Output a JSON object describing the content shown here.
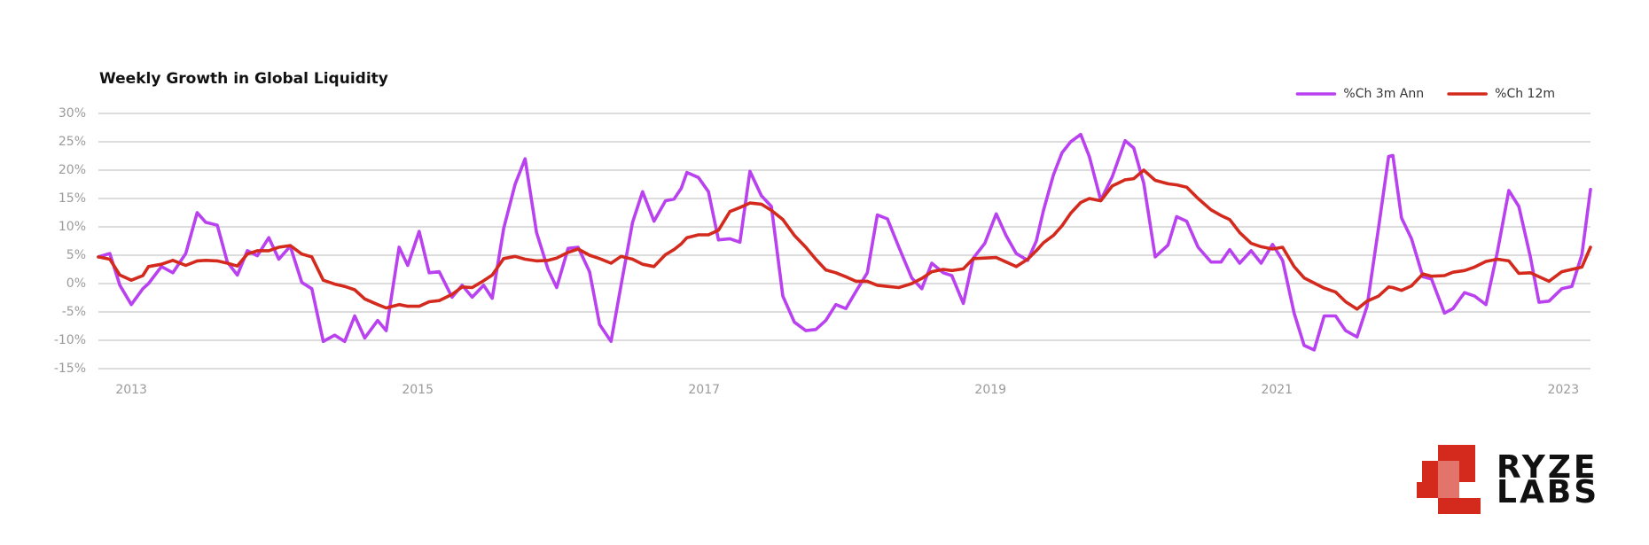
{
  "chart_data": {
    "type": "line",
    "title": "Weekly Growth in Global Liquidity",
    "xlim": [
      2012.77,
      2023.19
    ],
    "xticks": [
      2013,
      2015,
      2017,
      2019,
      2021,
      2023
    ],
    "ylim": [
      -15,
      30
    ],
    "yticks": [
      {
        "value": -15,
        "label": "-15%"
      },
      {
        "value": -10,
        "label": "-10%"
      },
      {
        "value": -5,
        "label": "-5%"
      },
      {
        "value": 0,
        "label": "0%"
      },
      {
        "value": 5,
        "label": "5%"
      },
      {
        "value": 10,
        "label": "10%"
      },
      {
        "value": 15,
        "label": "15%"
      },
      {
        "value": 20,
        "label": "20%"
      },
      {
        "value": 25,
        "label": "25%"
      },
      {
        "value": 30,
        "label": "30%"
      }
    ],
    "grid": true,
    "legend": "upper right",
    "x": [
      2012.77,
      2012.85,
      2012.92,
      2013.0,
      2013.08,
      2013.12,
      2013.21,
      2013.29,
      2013.38,
      2013.46,
      2013.52,
      2013.6,
      2013.67,
      2013.74,
      2013.81,
      2013.88,
      2013.96,
      2014.03,
      2014.11,
      2014.19,
      2014.26,
      2014.34,
      2014.42,
      2014.49,
      2014.56,
      2014.63,
      2014.72,
      2014.78,
      2014.87,
      2014.93,
      2015.01,
      2015.08,
      2015.15,
      2015.24,
      2015.31,
      2015.38,
      2015.46,
      2015.52,
      2015.6,
      2015.68,
      2015.75,
      2015.83,
      2015.91,
      2015.97,
      2016.05,
      2016.12,
      2016.2,
      2016.27,
      2016.35,
      2016.42,
      2016.5,
      2016.57,
      2016.65,
      2016.73,
      2016.79,
      2016.84,
      2016.88,
      2016.96,
      2017.03,
      2017.1,
      2017.18,
      2017.25,
      2017.32,
      2017.4,
      2017.47,
      2017.55,
      2017.63,
      2017.71,
      2017.78,
      2017.85,
      2017.92,
      2017.99,
      2018.06,
      2018.14,
      2018.21,
      2018.28,
      2018.36,
      2018.45,
      2018.52,
      2018.59,
      2018.67,
      2018.73,
      2018.81,
      2018.88,
      2018.96,
      2019.04,
      2019.11,
      2019.18,
      2019.26,
      2019.32,
      2019.37,
      2019.44,
      2019.5,
      2019.56,
      2019.63,
      2019.69,
      2019.77,
      2019.85,
      2019.94,
      2020.0,
      2020.07,
      2020.15,
      2020.24,
      2020.3,
      2020.37,
      2020.45,
      2020.54,
      2020.61,
      2020.67,
      2020.74,
      2020.82,
      2020.89,
      2020.97,
      2021.04,
      2021.12,
      2021.19,
      2021.26,
      2021.33,
      2021.41,
      2021.48,
      2021.56,
      2021.63,
      2021.71,
      2021.78,
      2021.81,
      2021.87,
      2021.94,
      2022.02,
      2022.08,
      2022.17,
      2022.23,
      2022.31,
      2022.38,
      2022.46,
      2022.54,
      2022.62,
      2022.69,
      2022.77,
      2022.83,
      2022.9,
      2022.99,
      2023.06,
      2023.13,
      2023.19
    ],
    "series": [
      {
        "name": "%Ch 3m Ann",
        "color": "#b941f0",
        "values": [
          4.7,
          5.3,
          -0.3,
          -3.7,
          -0.9,
          0,
          3,
          1.9,
          5.3,
          12.5,
          10.8,
          10.3,
          3.8,
          1.5,
          5.8,
          4.9,
          8.1,
          4.3,
          6.6,
          0.2,
          -0.9,
          -10.2,
          -9.1,
          -10.2,
          -5.7,
          -9.6,
          -6.5,
          -8.3,
          6.4,
          3.2,
          9.2,
          1.9,
          2.1,
          -2.4,
          -0.3,
          -2.4,
          -0.3,
          -2.6,
          9.7,
          17.5,
          22,
          9,
          2.5,
          -0.7,
          6.2,
          6.4,
          2.1,
          -7.2,
          -10.2,
          -0.3,
          10.8,
          16.2,
          11,
          14.6,
          14.9,
          16.8,
          19.6,
          18.7,
          16.2,
          7.7,
          7.9,
          7.3,
          19.8,
          15.5,
          13.6,
          -2.2,
          -6.8,
          -8.3,
          -8.1,
          -6.5,
          -3.7,
          -4.4,
          -1.4,
          1.9,
          12.1,
          11.4,
          6.4,
          1,
          -0.9,
          3.6,
          1.9,
          1.4,
          -3.5,
          4.5,
          7.1,
          12.3,
          8.4,
          5.3,
          4.1,
          7.5,
          12.9,
          19.2,
          23.1,
          25,
          26.3,
          22.4,
          14.7,
          18.8,
          25.2,
          23.9,
          17.7,
          4.7,
          6.8,
          11.8,
          11,
          6.4,
          3.8,
          3.8,
          6,
          3.6,
          5.8,
          3.6,
          6.9,
          4.1,
          -5.2,
          -10.9,
          -11.7,
          -5.7,
          -5.7,
          -8.3,
          -9.4,
          -4,
          9.9,
          22.4,
          22.6,
          11.6,
          7.9,
          1.2,
          0.8,
          -5.2,
          -4.4,
          -1.6,
          -2.2,
          -3.7,
          5.6,
          16.4,
          13.6,
          4.7,
          -3.3,
          -3.1,
          -0.9,
          -0.5,
          5.1,
          16.6
        ]
      },
      {
        "name": "%Ch 12m",
        "color": "#d42a1e",
        "values": [
          4.7,
          4.3,
          1.5,
          0.6,
          1.4,
          3.0,
          3.4,
          4.1,
          3.2,
          4,
          4.1,
          4,
          3.6,
          3.1,
          5.2,
          5.8,
          5.8,
          6.4,
          6.7,
          5.2,
          4.7,
          0.6,
          -0.1,
          -0.5,
          -1.1,
          -2.7,
          -3.7,
          -4.3,
          -3.7,
          -4,
          -4,
          -3.2,
          -3,
          -1.9,
          -0.6,
          -0.7,
          0.5,
          1.5,
          4.4,
          4.8,
          4.3,
          4,
          4.1,
          4.5,
          5.5,
          6.1,
          5,
          4.4,
          3.6,
          4.8,
          4.3,
          3.4,
          3,
          5.1,
          6,
          7,
          8.1,
          8.6,
          8.6,
          9.4,
          12.7,
          13.4,
          14.2,
          14,
          12.9,
          11.3,
          8.5,
          6.4,
          4.3,
          2.4,
          1.9,
          1.2,
          0.4,
          0.4,
          -0.3,
          -0.5,
          -0.7,
          0,
          0.9,
          2.1,
          2.5,
          2.3,
          2.6,
          4.4,
          4.5,
          4.6,
          3.8,
          3,
          4.3,
          5.8,
          7.2,
          8.5,
          10.2,
          12.4,
          14.3,
          15,
          14.6,
          17.2,
          18.3,
          18.5,
          20,
          18.2,
          17.6,
          17.4,
          17,
          15,
          13,
          12,
          11.3,
          9,
          7.1,
          6.5,
          6.1,
          6.4,
          3,
          1,
          0.1,
          -0.8,
          -1.5,
          -3.2,
          -4.5,
          -3.1,
          -2.2,
          -0.6,
          -0.7,
          -1.2,
          -0.4,
          1.7,
          1.3,
          1.4,
          2,
          2.3,
          2.9,
          3.9,
          4.3,
          4,
          1.8,
          1.9,
          1.2,
          0.4,
          2.1,
          2.5,
          2.9,
          6.4
        ]
      }
    ]
  },
  "logo": [
    "RYZE",
    "LABS"
  ]
}
